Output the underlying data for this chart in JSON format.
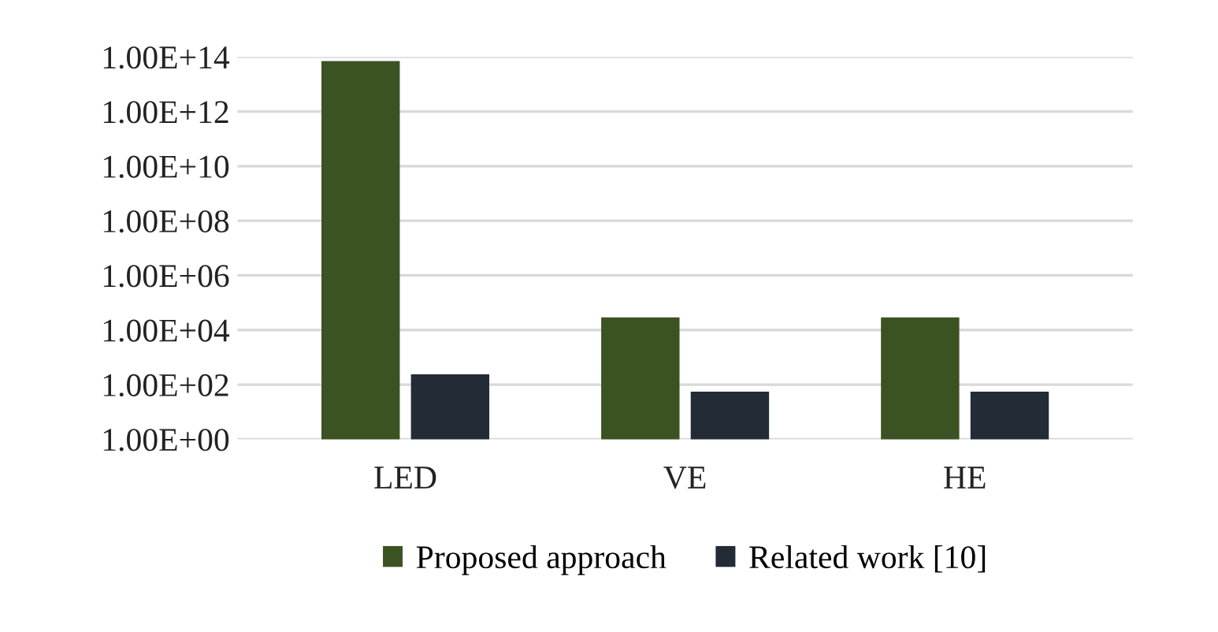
{
  "chart_data": {
    "type": "bar",
    "categories": [
      "LED",
      "VE",
      "HE"
    ],
    "series": [
      {
        "name": "Proposed approach",
        "color": "#3b5323",
        "values": [
          70000000000000.0,
          29000,
          29000
        ]
      },
      {
        "name": "Related work [10]",
        "color": "#232b36",
        "values": [
          240,
          55,
          55
        ]
      }
    ],
    "log": "y",
    "ylim": [
      1,
      100000000000000.0
    ],
    "yticks": [
      {
        "value": 1,
        "label": "1.00E+00"
      },
      {
        "value": 100,
        "label": "1.00E+02"
      },
      {
        "value": 10000,
        "label": "1.00E+04"
      },
      {
        "value": 1000000,
        "label": "1.00E+06"
      },
      {
        "value": 100000000,
        "label": "1.00E+08"
      },
      {
        "value": 10000000000,
        "label": "1.00E+10"
      },
      {
        "value": 1000000000000,
        "label": "1.00E+12"
      },
      {
        "value": 100000000000000,
        "label": "1.00E+14"
      }
    ],
    "grid": "y",
    "legend": "bottom"
  }
}
